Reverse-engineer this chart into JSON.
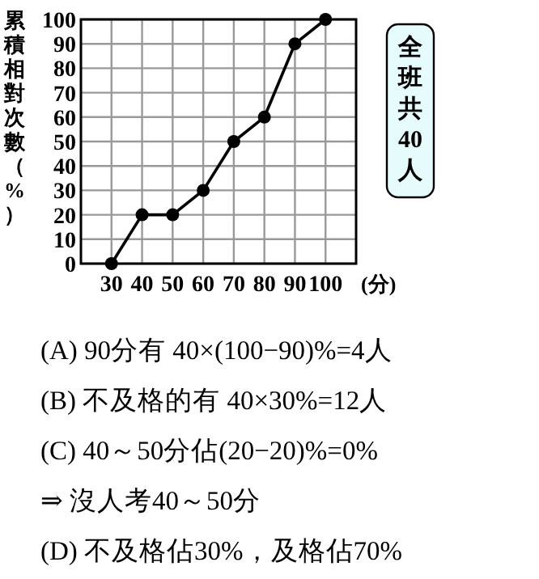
{
  "chart_data": {
    "type": "line",
    "x": [
      30,
      40,
      50,
      60,
      70,
      80,
      90,
      100
    ],
    "series": [
      {
        "color": "#000000",
        "values": [
          0,
          20,
          20,
          30,
          50,
          60,
          90,
          100
        ]
      }
    ],
    "xlim": [
      20,
      110
    ],
    "xticks": [
      30,
      40,
      50,
      60,
      70,
      80,
      90,
      100
    ],
    "ylim": [
      0,
      100
    ],
    "yticks": [
      0,
      10,
      20,
      30,
      40,
      50,
      60,
      70,
      80,
      90,
      100
    ],
    "xlabel": "(分)",
    "ylabel": "累積相對次數（%）",
    "grid": true,
    "marker": "circle",
    "line_style": "solid",
    "annotations": [
      "全班共40人",
      "(A) 90分有 40×(100−90)%=4人",
      "(B) 不及格的有 40×30%=12人",
      "(C) 40～50分佔(20−20)%=0%",
      "⇒ 沒人考40～50分",
      "(D) 不及格佔30%，及格佔70%"
    ]
  }
}
